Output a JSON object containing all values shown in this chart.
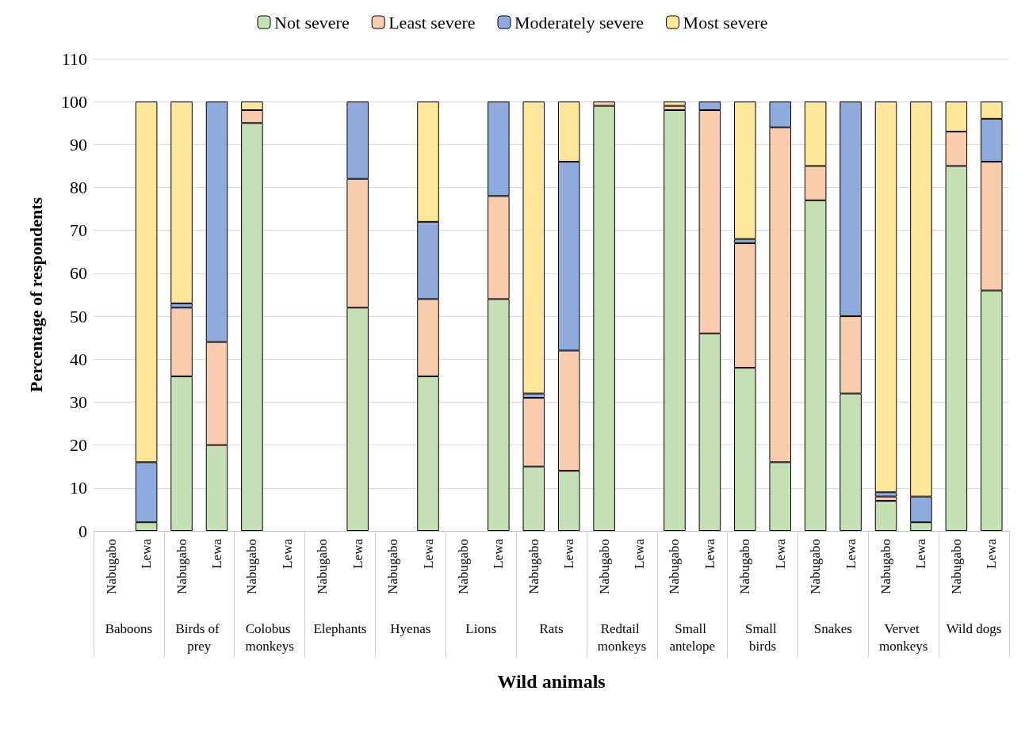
{
  "chart_data": {
    "type": "bar",
    "stacked": true,
    "xlabel": "Wild animals",
    "ylabel": "Percentage of respondents",
    "categories": [
      "Nabugabo",
      "Lewa",
      "Nabugabo",
      "Lewa",
      "Nabugabo",
      "Lewa",
      "Nabugabo",
      "Lewa",
      "Nabugabo",
      "Lewa",
      "Nabugabo",
      "Lewa",
      "Nabugabo",
      "Lewa",
      "Nabugabo",
      "Lewa",
      "Nabugabo",
      "Lewa",
      "Nabugabo",
      "Lewa",
      "Nabugabo",
      "Lewa",
      "Nabugabo",
      "Lewa",
      "Nabugabo",
      "Lewa"
    ],
    "annotations": [
      "Baboons",
      "Birds of prey",
      "Colobus monkeys",
      "Elephants",
      "Hyenas",
      "Lions",
      "Rats",
      "Redtail monkeys",
      "Small antelope",
      "Small birds",
      "Snakes",
      "Vervet monkeys",
      "Wild dogs"
    ],
    "series": [
      {
        "name": "Not severe",
        "color": "#c5e0b4",
        "values": [
          null,
          2,
          36,
          20,
          95,
          null,
          null,
          52,
          null,
          36,
          null,
          54,
          15,
          14,
          99,
          null,
          98,
          46,
          38,
          16,
          77,
          32,
          7,
          2,
          85,
          56
        ]
      },
      {
        "name": "Least severe",
        "color": "#f8cbad",
        "values": [
          null,
          null,
          16,
          24,
          3,
          null,
          null,
          30,
          null,
          18,
          null,
          24,
          16,
          28,
          1,
          null,
          1,
          52,
          29,
          78,
          8,
          18,
          1,
          null,
          8,
          30
        ]
      },
      {
        "name": "Moderately severe",
        "color": "#8faadc",
        "values": [
          null,
          14,
          1,
          56,
          null,
          null,
          null,
          18,
          null,
          18,
          null,
          22,
          1,
          44,
          null,
          null,
          null,
          2,
          1,
          6,
          null,
          50,
          1,
          6,
          null,
          10
        ]
      },
      {
        "name": "Most severe",
        "color": "#ffe699",
        "values": [
          null,
          84,
          47,
          null,
          2,
          null,
          null,
          null,
          null,
          28,
          null,
          null,
          68,
          14,
          null,
          null,
          1,
          null,
          32,
          null,
          15,
          null,
          91,
          92,
          7,
          4
        ]
      }
    ],
    "ylim": [
      0,
      110
    ],
    "yticks": [
      0,
      10,
      20,
      30,
      40,
      50,
      60,
      70,
      80,
      90,
      100,
      110
    ],
    "grid": "y",
    "legend": "top"
  }
}
